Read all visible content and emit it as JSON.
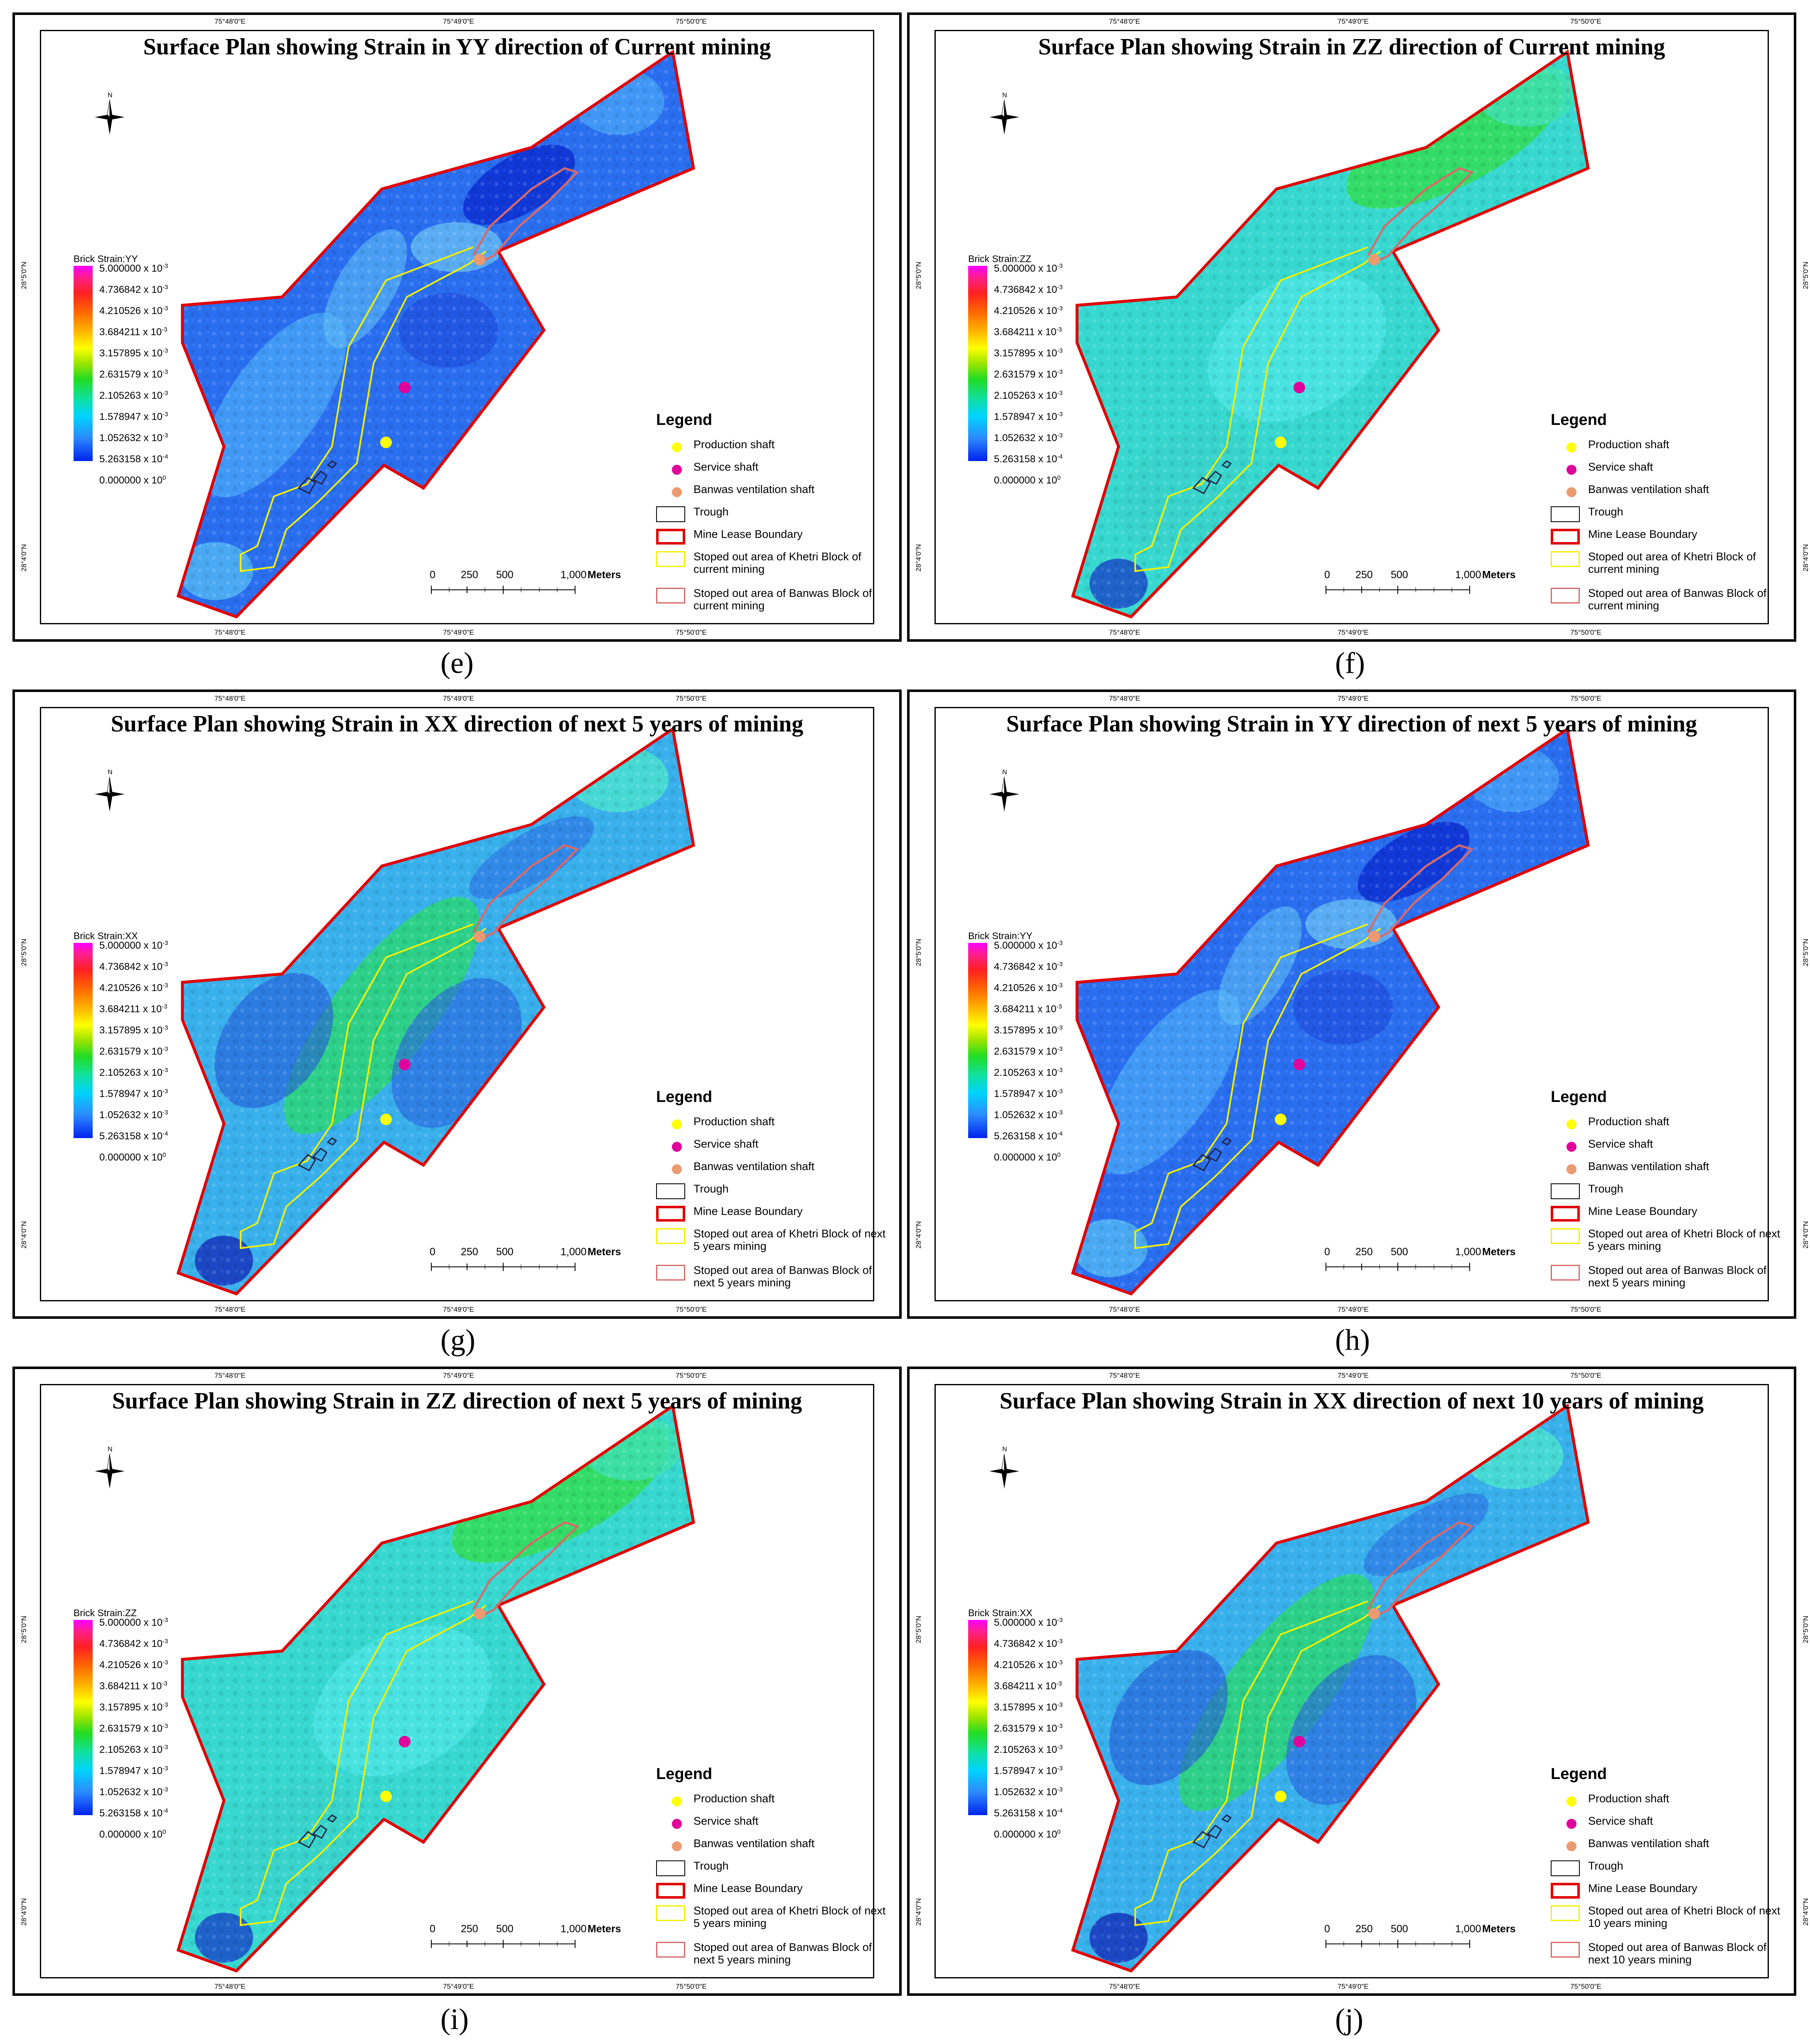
{
  "legend_title": "Legend",
  "legend_items": {
    "production_shaft": "Production shaft",
    "service_shaft": "Service shaft",
    "ventilation_shaft": "Banwas ventilation shaft",
    "trough": "Trough",
    "boundary": "Mine Lease Boundary"
  },
  "north_label": "N",
  "scale": {
    "labels": [
      "0",
      "250",
      "500",
      "1,000"
    ],
    "unit": "Meters"
  },
  "ticks": {
    "top": [
      "75°48'0\"E",
      "75°49'0\"E",
      "75°50'0\"E"
    ],
    "bottom": [
      "75°48'0\"E",
      "75°49'0\"E",
      "75°50'0\"E"
    ],
    "side": [
      "28°5'0\"N",
      "28°4'0\"N"
    ]
  },
  "colorbar_labels": [
    {
      "m": "5.000000",
      "e": "-3"
    },
    {
      "m": "4.736842",
      "e": "-3"
    },
    {
      "m": "4.210526",
      "e": "-3"
    },
    {
      "m": "3.684211",
      "e": "-3"
    },
    {
      "m": "3.157895",
      "e": "-3"
    },
    {
      "m": "2.631579",
      "e": "-3"
    },
    {
      "m": "2.105263",
      "e": "-3"
    },
    {
      "m": "1.578947",
      "e": "-3"
    },
    {
      "m": "1.052632",
      "e": "-3"
    },
    {
      "m": "5.263158",
      "e": "-4"
    },
    {
      "m": "0.000000",
      "e": "0"
    }
  ],
  "colors": {
    "boundary": "#e00000",
    "khetri": "#f2f000",
    "banwas": "#d86a6a",
    "production_shaft": "#ffff00",
    "service_shaft": "#e0009a",
    "ventilation_shaft": "#ec9a70"
  },
  "panels": [
    {
      "caption": "(e)",
      "title": "Surface Plan showing Strain in YY direction of Current mining",
      "colorbar_title": "Brick Strain:YY",
      "theme": "blue",
      "khetri_label": "Stoped out area of Khetri Block of current mining",
      "banwas_label": "Stoped out area of Banwas Block of current mining"
    },
    {
      "caption": "(f)",
      "title": "Surface Plan showing Strain in ZZ direction of Current mining",
      "colorbar_title": "Brick Strain:ZZ",
      "theme": "green",
      "khetri_label": "Stoped out area of Khetri Block of current mining",
      "banwas_label": "Stoped out area of Banwas Block of current mining"
    },
    {
      "caption": "(g)",
      "title": "Surface Plan showing Strain in XX direction of next 5 years of mining",
      "colorbar_title": "Brick Strain:XX",
      "theme": "xx",
      "khetri_label": "Stoped out area of Khetri Block of next 5 years mining",
      "banwas_label": "Stoped out area of Banwas Block of next 5 years mining"
    },
    {
      "caption": "(h)",
      "title": "Surface Plan showing Strain in YY direction of next 5 years of mining",
      "colorbar_title": "Brick Strain:YY",
      "theme": "blue",
      "khetri_label": "Stoped out area of Khetri Block of next 5 years mining",
      "banwas_label": "Stoped out area of Banwas Block of next 5 years mining"
    },
    {
      "caption": "(i)",
      "title": "Surface Plan showing Strain in ZZ direction of next 5 years of mining",
      "colorbar_title": "Brick Strain:ZZ",
      "theme": "green",
      "khetri_label": "Stoped out area of Khetri Block of next 5 years mining",
      "banwas_label": "Stoped out area of Banwas Block of next 5 years mining"
    },
    {
      "caption": "(j)",
      "title": "Surface Plan showing Strain in XX direction of next 10 years of mining",
      "colorbar_title": "Brick Strain:XX",
      "theme": "xx",
      "khetri_label": "Stoped out area of Khetri Block of next 10 years mining",
      "banwas_label": "Stoped out area of Banwas Block of next 10 years mining"
    }
  ]
}
